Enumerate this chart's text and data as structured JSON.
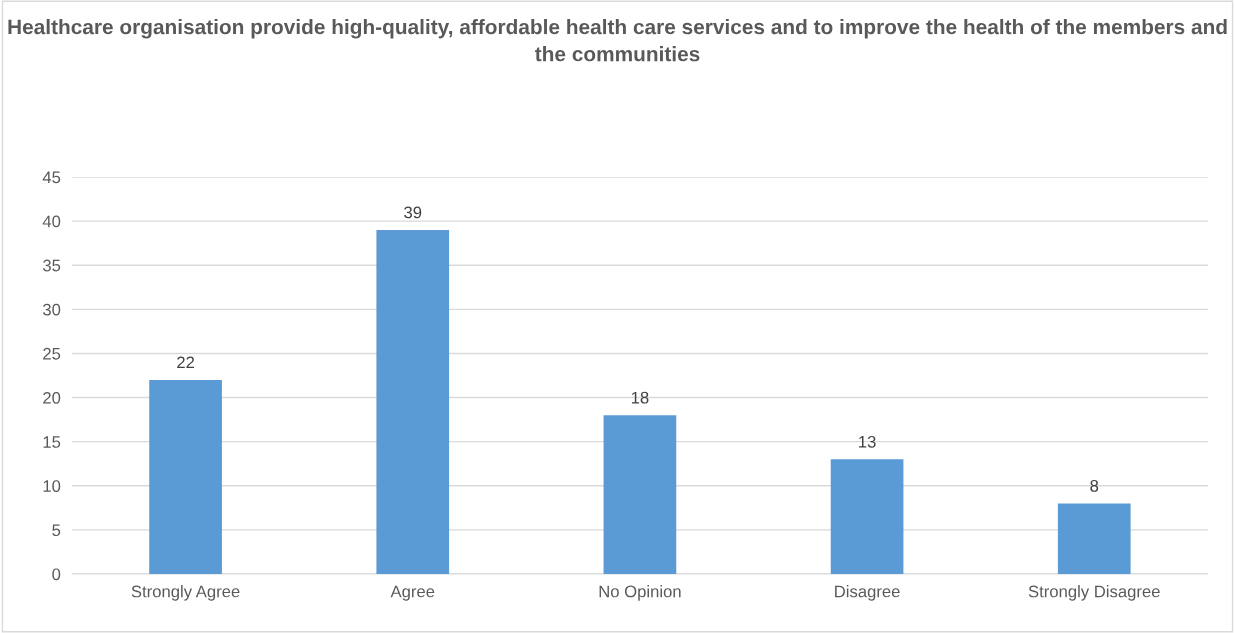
{
  "chart_data": {
    "type": "bar",
    "title": "Healthcare organisation provide high-quality, affordable health care services and to improve the health of the members and the communities",
    "categories": [
      "Strongly Agree",
      "Agree",
      "No Opinion",
      "Disagree",
      "Strongly Disagree"
    ],
    "values": [
      22,
      39,
      18,
      13,
      8
    ],
    "color": "#5b9bd5",
    "ylim": [
      0,
      45
    ],
    "yticks": [
      0,
      5,
      10,
      15,
      20,
      25,
      30,
      35,
      40,
      45
    ],
    "grid": "y",
    "data_labels": true,
    "legend": false
  }
}
